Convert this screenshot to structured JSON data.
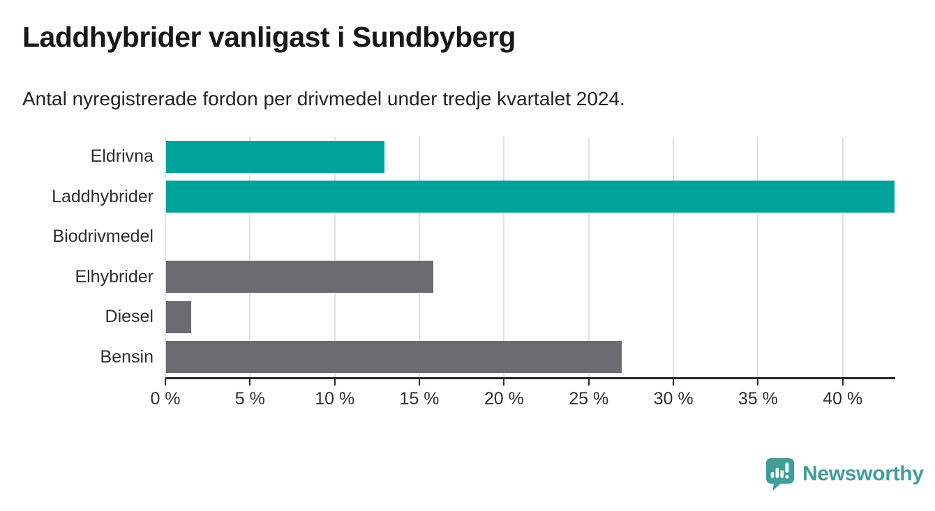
{
  "title": "Laddhybrider vanligast i Sundbyberg",
  "subtitle": "Antal nyregistrerade fordon per drivmedel under tredje kvartalet 2024.",
  "colors": {
    "teal": "#00a39a",
    "gray": "#6b6b71",
    "grid": "#e2e2e2",
    "axis": "#262626",
    "title_text": "#181818",
    "label_text": "#2e2e2e",
    "logo_teal": "#3e9e98"
  },
  "chart_data": {
    "type": "bar",
    "orientation": "horizontal",
    "title": "Laddhybrider vanligast i Sundbyberg",
    "subtitle": "Antal nyregistrerade fordon per drivmedel under tredje kvartalet 2024.",
    "categories": [
      "Eldrivna",
      "Laddhybrider",
      "Biodrivmedel",
      "Elhybrider",
      "Diesel",
      "Bensin"
    ],
    "values": [
      12.9,
      43,
      0,
      15.8,
      1.5,
      26.9
    ],
    "bar_colors": [
      "#00a39a",
      "#00a39a",
      "#6b6b71",
      "#6b6b71",
      "#6b6b71",
      "#6b6b71"
    ],
    "xlabel": "",
    "ylabel": "",
    "xlim": [
      0,
      43.1
    ],
    "x_ticks": [
      0,
      5,
      10,
      15,
      20,
      25,
      30,
      35,
      40
    ],
    "x_tick_labels": [
      "0 %",
      "5 %",
      "10 %",
      "15 %",
      "20 %",
      "25 %",
      "30 %",
      "35 %",
      "40 %"
    ],
    "grid": true,
    "legend": false
  },
  "footer": {
    "brand": "Newsworthy"
  }
}
